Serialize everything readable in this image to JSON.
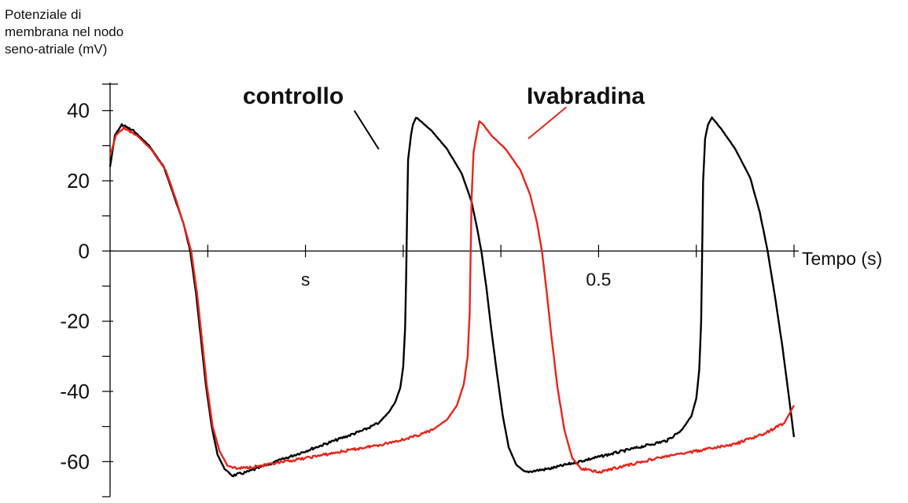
{
  "chart_data": {
    "type": "line",
    "ylabel_lines": [
      "Potenziale di",
      "membrana nel nodo",
      "seno-atriale (mV)"
    ],
    "xlabel": "Tempo (s)",
    "ylim": [
      -70,
      48
    ],
    "xlim": [
      0,
      0.7
    ],
    "y_ticks": [
      -60,
      -40,
      -20,
      0,
      20,
      40
    ],
    "y_tick_labels": [
      "-60",
      "-40",
      "-20",
      "0",
      "20",
      "40"
    ],
    "x_tick_values": [
      0.1,
      0.2,
      0.3,
      0.4,
      0.5,
      0.6,
      0.7
    ],
    "x_tick_text": [
      {
        "label": "s",
        "at": 0.2
      },
      {
        "label": "0.5",
        "at": 0.5
      }
    ],
    "grid": false,
    "series": [
      {
        "name": "controllo",
        "color": "#000000",
        "points": [
          [
            0.0,
            24
          ],
          [
            0.005,
            33
          ],
          [
            0.012,
            36
          ],
          [
            0.025,
            34
          ],
          [
            0.04,
            30
          ],
          [
            0.055,
            24
          ],
          [
            0.065,
            16
          ],
          [
            0.075,
            8
          ],
          [
            0.082,
            0
          ],
          [
            0.088,
            -12
          ],
          [
            0.093,
            -25
          ],
          [
            0.098,
            -38
          ],
          [
            0.104,
            -50
          ],
          [
            0.11,
            -58
          ],
          [
            0.117,
            -62
          ],
          [
            0.125,
            -64
          ],
          [
            0.14,
            -63
          ],
          [
            0.16,
            -61
          ],
          [
            0.18,
            -59
          ],
          [
            0.2,
            -57
          ],
          [
            0.22,
            -55
          ],
          [
            0.24,
            -53
          ],
          [
            0.26,
            -51
          ],
          [
            0.275,
            -49
          ],
          [
            0.285,
            -46
          ],
          [
            0.292,
            -43
          ],
          [
            0.297,
            -39
          ],
          [
            0.3,
            -33
          ],
          [
            0.302,
            -22
          ],
          [
            0.303,
            -8
          ],
          [
            0.304,
            10
          ],
          [
            0.305,
            26
          ],
          [
            0.308,
            33
          ],
          [
            0.31,
            36
          ],
          [
            0.313,
            38
          ],
          [
            0.318,
            37
          ],
          [
            0.33,
            34
          ],
          [
            0.345,
            29
          ],
          [
            0.36,
            22
          ],
          [
            0.37,
            14
          ],
          [
            0.376,
            6
          ],
          [
            0.38,
            0
          ],
          [
            0.385,
            -10
          ],
          [
            0.39,
            -22
          ],
          [
            0.396,
            -35
          ],
          [
            0.402,
            -47
          ],
          [
            0.408,
            -56
          ],
          [
            0.416,
            -61
          ],
          [
            0.425,
            -63
          ],
          [
            0.45,
            -62
          ],
          [
            0.48,
            -60
          ],
          [
            0.51,
            -58
          ],
          [
            0.54,
            -56
          ],
          [
            0.57,
            -54
          ],
          [
            0.585,
            -51
          ],
          [
            0.595,
            -47
          ],
          [
            0.6,
            -42
          ],
          [
            0.603,
            -34
          ],
          [
            0.605,
            -20
          ],
          [
            0.606,
            0
          ],
          [
            0.607,
            20
          ],
          [
            0.609,
            32
          ],
          [
            0.612,
            36
          ],
          [
            0.616,
            38
          ],
          [
            0.625,
            35
          ],
          [
            0.64,
            29
          ],
          [
            0.655,
            21
          ],
          [
            0.665,
            11
          ],
          [
            0.673,
            0
          ],
          [
            0.68,
            -12
          ],
          [
            0.688,
            -27
          ],
          [
            0.695,
            -42
          ],
          [
            0.7,
            -53
          ]
        ]
      },
      {
        "name": "Ivabradina",
        "color": "#e8251b",
        "points": [
          [
            0.0,
            27
          ],
          [
            0.006,
            33
          ],
          [
            0.014,
            35
          ],
          [
            0.027,
            33
          ],
          [
            0.042,
            29
          ],
          [
            0.057,
            23
          ],
          [
            0.067,
            15
          ],
          [
            0.076,
            7
          ],
          [
            0.083,
            0
          ],
          [
            0.089,
            -12
          ],
          [
            0.094,
            -25
          ],
          [
            0.099,
            -38
          ],
          [
            0.105,
            -50
          ],
          [
            0.112,
            -57
          ],
          [
            0.12,
            -61
          ],
          [
            0.13,
            -62
          ],
          [
            0.16,
            -61
          ],
          [
            0.2,
            -59
          ],
          [
            0.24,
            -57
          ],
          [
            0.28,
            -55
          ],
          [
            0.31,
            -53
          ],
          [
            0.33,
            -51
          ],
          [
            0.345,
            -48
          ],
          [
            0.355,
            -44
          ],
          [
            0.362,
            -38
          ],
          [
            0.366,
            -30
          ],
          [
            0.368,
            -18
          ],
          [
            0.369,
            -2
          ],
          [
            0.37,
            15
          ],
          [
            0.372,
            28
          ],
          [
            0.375,
            33
          ],
          [
            0.378,
            37
          ],
          [
            0.382,
            36
          ],
          [
            0.39,
            33
          ],
          [
            0.405,
            29
          ],
          [
            0.42,
            23
          ],
          [
            0.43,
            16
          ],
          [
            0.437,
            8
          ],
          [
            0.442,
            0
          ],
          [
            0.447,
            -12
          ],
          [
            0.452,
            -25
          ],
          [
            0.458,
            -39
          ],
          [
            0.465,
            -51
          ],
          [
            0.473,
            -59
          ],
          [
            0.482,
            -62
          ],
          [
            0.5,
            -63
          ],
          [
            0.53,
            -61
          ],
          [
            0.56,
            -59
          ],
          [
            0.6,
            -57
          ],
          [
            0.64,
            -55
          ],
          [
            0.67,
            -52
          ],
          [
            0.69,
            -49
          ],
          [
            0.7,
            -44
          ]
        ]
      }
    ],
    "annotations": [
      {
        "text": "controllo",
        "pointer_x": [
          0.25,
          0.275
        ],
        "pointer_y": [
          40,
          29
        ]
      },
      {
        "text": "Ivabradina",
        "pointer_x": [
          0.428,
          0.467
        ],
        "pointer_y": [
          32,
          41
        ]
      }
    ]
  }
}
